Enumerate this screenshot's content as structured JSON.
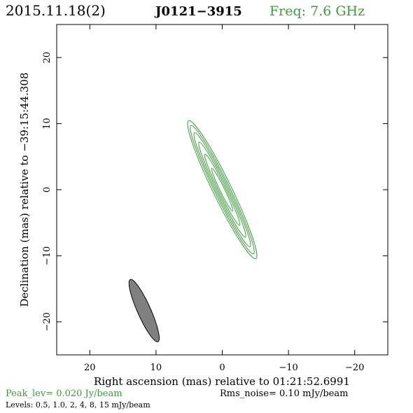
{
  "header": {
    "date": "2015.11.18(2)",
    "source": "J0121−3915",
    "freq": "Freq: 7.6 GHz"
  },
  "colors": {
    "contour": "#3a9a3a",
    "freq_text": "#3a9a3a",
    "beam_fill": "#808080",
    "axes": "#000000"
  },
  "chart_data": {
    "type": "contour",
    "xlabel": "Right ascension (mas) relative to 01:21:52.6991",
    "ylabel": "Declination (mas) relative to −39:15:44.308",
    "xlim": [
      25,
      -25
    ],
    "ylim": [
      -25,
      25
    ],
    "xticks": [
      20,
      10,
      0,
      -10,
      -20
    ],
    "xtick_labels": [
      "20",
      "10",
      "0",
      "−10",
      "−20"
    ],
    "yticks": [
      20,
      10,
      0,
      -10,
      -20
    ],
    "ytick_labels": [
      "20",
      "10",
      "0",
      "−10",
      "−20"
    ],
    "contours": [
      {
        "level": 0.5,
        "center": [
          0,
          0
        ],
        "major": 11.6,
        "minor": 1.4,
        "pa": 154
      },
      {
        "level": 1.0,
        "center": [
          0,
          0
        ],
        "major": 10.8,
        "minor": 1.15,
        "pa": 154
      },
      {
        "level": 2,
        "center": [
          0,
          0
        ],
        "major": 9.6,
        "minor": 0.95,
        "pa": 154
      },
      {
        "level": 4,
        "center": [
          0,
          0
        ],
        "major": 8.0,
        "minor": 0.75,
        "pa": 154
      },
      {
        "level": 8,
        "center": [
          0,
          0
        ],
        "major": 6.0,
        "minor": 0.55,
        "pa": 154
      },
      {
        "level": 15,
        "center": [
          0,
          0
        ],
        "major": 3.6,
        "minor": 0.35,
        "pa": 154
      }
    ],
    "beam": {
      "center": [
        11.8,
        -18.3
      ],
      "major": 5.15,
      "minor": 1.0,
      "pa": 156
    }
  },
  "footer": {
    "peak": "Peak_lev=  0.020 Jy/beam",
    "rms": "Rms_noise= 0.10 mJy/beam",
    "levels": "Levels: 0.5, 1.0,   2,   4,   8,  15 mJy/beam"
  }
}
